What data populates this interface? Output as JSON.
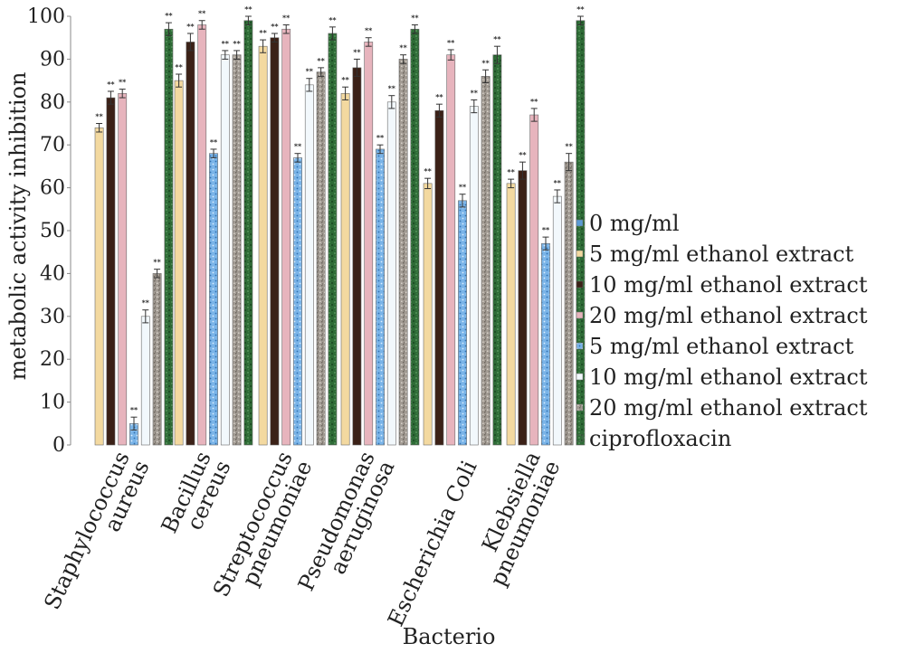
{
  "chart_data": {
    "type": "bar",
    "title": "",
    "xlabel": "Bacterio",
    "ylabel": "metabolic activity inhibition",
    "ylim": [
      0,
      100
    ],
    "yticks": [
      0,
      10,
      20,
      30,
      40,
      50,
      60,
      70,
      80,
      90,
      100
    ],
    "grid": false,
    "legend_position": "right",
    "categories": [
      [
        "Staphylococcus",
        "aureus"
      ],
      [
        "Bacillus",
        "cereus"
      ],
      [
        "Streptococcus",
        "pneumoniae"
      ],
      [
        "Pseudomonas",
        "aeruginosa"
      ],
      [
        "Escherichia Coli"
      ],
      [
        "Klebsiella",
        "pneumoniae"
      ]
    ],
    "significance_marker": "**",
    "series": [
      {
        "name": "0 mg/ml",
        "color": "#5b9bd5",
        "pattern": "solid",
        "values": [
          0,
          0,
          0,
          0,
          0,
          0
        ],
        "errors": [
          0,
          0,
          0,
          0,
          0,
          0
        ]
      },
      {
        "name": "5 mg/ml ethanol extract",
        "color": "#f3d9a0",
        "pattern": "solid",
        "values": [
          74,
          85,
          93,
          82,
          61,
          61
        ],
        "errors": [
          1,
          1.5,
          1.5,
          1.5,
          1.2,
          1
        ]
      },
      {
        "name": "10 mg/ml ethanol extract",
        "color": "#3b2117",
        "pattern": "solid",
        "values": [
          81,
          94,
          95,
          88,
          78,
          64
        ],
        "errors": [
          1.5,
          2,
          1,
          2,
          1.5,
          2
        ]
      },
      {
        "name": "20 mg/ml ethanol extract",
        "color": "#e7b4bd",
        "pattern": "solid",
        "values": [
          82,
          98,
          97,
          94,
          91,
          77
        ],
        "errors": [
          1,
          1,
          1,
          1,
          1.2,
          1.5
        ]
      },
      {
        "name": "5 mg/ml ethanol extract",
        "color": "#7ab4e8",
        "pattern": "dots",
        "values": [
          5,
          68,
          67,
          69,
          57,
          47
        ],
        "errors": [
          1.5,
          1,
          1,
          1,
          1.5,
          1.5
        ]
      },
      {
        "name": "10 mg/ml ethanol extract",
        "color": "#f2f8fc",
        "pattern": "solid",
        "values": [
          30,
          91,
          84,
          80,
          79,
          58
        ],
        "errors": [
          1.5,
          1,
          1.5,
          1.5,
          1.5,
          1.5
        ]
      },
      {
        "name": "20 mg/ml ethanol extract",
        "color": "#9e9890",
        "pattern": "speckle",
        "values": [
          40,
          91,
          87,
          90,
          86,
          66
        ],
        "errors": [
          1,
          1,
          1,
          1,
          1.5,
          2
        ]
      },
      {
        "name": "ciprofloxacin",
        "color": "#2e6b36",
        "pattern": "mottle",
        "values": [
          97,
          99,
          96,
          97,
          91,
          99
        ],
        "errors": [
          1.5,
          1,
          1.5,
          1,
          2,
          1
        ]
      }
    ]
  }
}
